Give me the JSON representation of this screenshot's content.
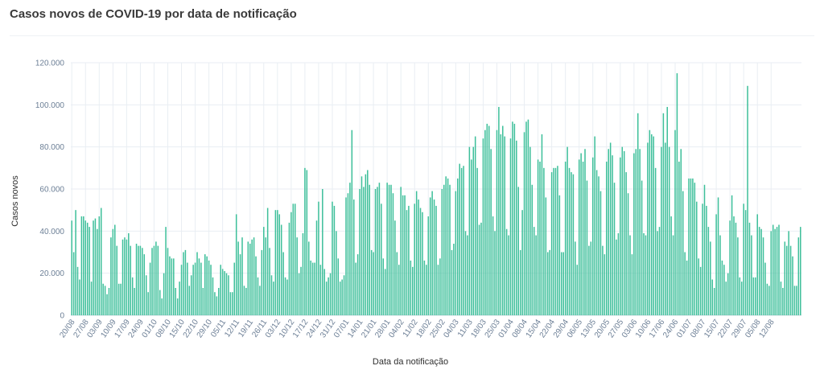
{
  "header": {
    "title": "Casos novos de COVID-19 por data de notificação"
  },
  "chart_data": {
    "type": "bar",
    "title": "Casos novos de COVID-19 por data de notificação",
    "xlabel": "Data da notificação",
    "ylabel": "Casos novos",
    "ylim": [
      0,
      120000
    ],
    "yticks": [
      0,
      20000,
      40000,
      60000,
      80000,
      100000,
      120000
    ],
    "ytick_labels": [
      "0",
      "20.000",
      "40.000",
      "60.000",
      "80.000",
      "100.000",
      "120.000"
    ],
    "grid": true,
    "colors": {
      "bar": "#3dbf9a",
      "grid": "#e9eef3",
      "tick": "#6c7f96"
    },
    "start_date": "2020-08-20",
    "tick_every": 7,
    "xtick_labels": [
      "20/08",
      "27/08",
      "03/09",
      "10/09",
      "17/09",
      "24/09",
      "01/10",
      "08/10",
      "15/10",
      "22/10",
      "29/10",
      "05/11",
      "12/11",
      "19/11",
      "26/11",
      "03/12",
      "10/12",
      "17/12",
      "24/12",
      "31/12",
      "07/01",
      "14/01",
      "21/01",
      "28/01",
      "04/02",
      "11/02",
      "18/02",
      "25/02",
      "04/03",
      "11/03",
      "18/03",
      "25/03",
      "01/04",
      "08/04",
      "15/04",
      "22/04",
      "29/04",
      "06/05",
      "13/05",
      "20/05",
      "27/05",
      "03/06",
      "10/06",
      "17/06",
      "24/06",
      "01/07",
      "08/07",
      "15/07",
      "22/07",
      "29/07",
      "05/08",
      "12/08"
    ],
    "values": [
      45000,
      30000,
      50000,
      23000,
      17000,
      47000,
      47000,
      45000,
      44000,
      42000,
      16000,
      45000,
      46000,
      41000,
      47000,
      51000,
      15000,
      14000,
      10000,
      13000,
      37000,
      41000,
      43000,
      33000,
      15000,
      15000,
      36000,
      37000,
      36000,
      39000,
      33000,
      18000,
      13000,
      34000,
      33000,
      33000,
      32000,
      29000,
      19000,
      11000,
      25000,
      32000,
      33000,
      35000,
      33000,
      12000,
      8000,
      20000,
      42000,
      32000,
      28000,
      27000,
      27000,
      13000,
      8000,
      16000,
      24000,
      30000,
      31000,
      25000,
      14000,
      19000,
      24000,
      25000,
      30000,
      27000,
      25000,
      13000,
      29000,
      28000,
      26000,
      24000,
      18000,
      11000,
      9000,
      13000,
      24000,
      22000,
      21000,
      20000,
      19000,
      11000,
      11000,
      25000,
      48000,
      35000,
      29000,
      37000,
      14000,
      13000,
      35000,
      34000,
      36000,
      37000,
      28000,
      18000,
      14000,
      31000,
      42000,
      37000,
      51000,
      32000,
      19000,
      16000,
      50000,
      50000,
      48000,
      43000,
      30000,
      18000,
      17000,
      44000,
      49000,
      53000,
      53000,
      37000,
      20000,
      23000,
      39000,
      70000,
      69000,
      35000,
      26000,
      25000,
      25000,
      45000,
      54000,
      24000,
      60000,
      22000,
      16000,
      18000,
      20000,
      54000,
      52000,
      40000,
      27000,
      16000,
      17000,
      19000,
      56000,
      58000,
      63000,
      88000,
      55000,
      25000,
      29000,
      60000,
      66000,
      61000,
      67000,
      69000,
      62000,
      31000,
      30000,
      60000,
      61000,
      63000,
      53000,
      27000,
      22000,
      63000,
      62000,
      62000,
      58000,
      45000,
      30000,
      24000,
      61000,
      57000,
      57000,
      50000,
      52000,
      26000,
      23000,
      53000,
      59000,
      55000,
      51000,
      49000,
      26000,
      24000,
      47000,
      56000,
      59000,
      55000,
      52000,
      24000,
      27000,
      60000,
      62000,
      66000,
      65000,
      62000,
      31000,
      34000,
      59000,
      65000,
      72000,
      70000,
      71000,
      40000,
      38000,
      80000,
      74000,
      80000,
      85000,
      70000,
      43000,
      44000,
      84000,
      88000,
      91000,
      90000,
      79000,
      47000,
      40000,
      88000,
      99000,
      86000,
      90000,
      85000,
      41000,
      38000,
      84000,
      92000,
      91000,
      83000,
      61000,
      31000,
      50000,
      87000,
      92000,
      93000,
      80000,
      62000,
      42000,
      38000,
      74000,
      73000,
      86000,
      70000,
      56000,
      30000,
      31000,
      68000,
      70000,
      70000,
      71000,
      57000,
      30000,
      30000,
      73000,
      80000,
      70000,
      68000,
      67000,
      35000,
      24000,
      74000,
      77000,
      73000,
      79000,
      64000,
      33000,
      35000,
      75000,
      85000,
      69000,
      66000,
      59000,
      33000,
      29000,
      73000,
      79000,
      82000,
      76000,
      63000,
      36000,
      39000,
      75000,
      80000,
      78000,
      68000,
      58000,
      38000,
      29000,
      77000,
      79000,
      96000,
      79000,
      64000,
      39000,
      38000,
      82000,
      88000,
      86000,
      85000,
      70000,
      40000,
      42000,
      80000,
      96000,
      82000,
      99000,
      80000,
      47000,
      38000,
      88000,
      115000,
      73000,
      79000,
      59000,
      30000,
      26000,
      65000,
      65000,
      65000,
      63000,
      54000,
      27000,
      23000,
      53000,
      62000,
      52000,
      42000,
      35000,
      17000,
      13000,
      48000,
      56000,
      38000,
      26000,
      24000,
      16000,
      20000,
      45000,
      57000,
      47000,
      44000,
      37000,
      18000,
      16000,
      53000,
      50000,
      109000,
      44000,
      38000,
      18000,
      18000,
      48000,
      42000,
      41000,
      37000,
      25000,
      15000,
      14000,
      40000,
      43000,
      41000,
      42000,
      43000,
      16000,
      13000,
      35000,
      33000,
      40000,
      33000,
      28000,
      14000,
      14000,
      37000,
      42000
    ]
  }
}
